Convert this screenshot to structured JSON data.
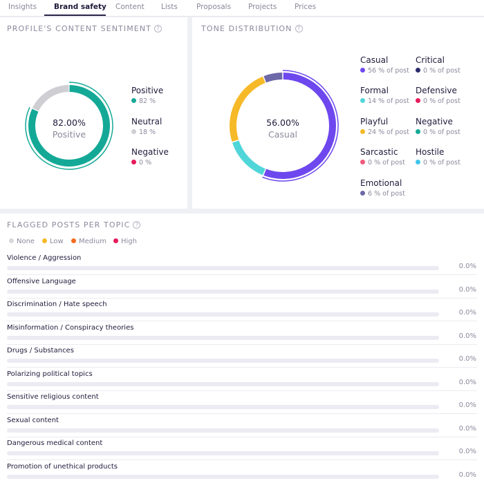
{
  "tabs": [
    "Insights",
    "Brand safety",
    "Content",
    "Lists",
    "Proposals",
    "Projects",
    "Prices"
  ],
  "active_tab": 1,
  "sentiment": {
    "title": "PROFILE'S CONTENT SENTIMENT",
    "help": "?",
    "center_value": "82.00%",
    "center_label": "Positive",
    "items": [
      {
        "name": "Positive",
        "sub": "82 %",
        "color": "#14a997",
        "value": 82
      },
      {
        "name": "Neutral",
        "sub": "18 %",
        "color": "#cfcfd3",
        "value": 18
      },
      {
        "name": "Negative",
        "sub": "0 %",
        "color": "#e8195a",
        "value": 0
      }
    ]
  },
  "tone": {
    "title": "TONE DISTRIBUTION",
    "help": "?",
    "center_value": "56.00%",
    "center_label": "Casual",
    "items": [
      {
        "name": "Casual",
        "sub": "56 % of post",
        "color": "#6e48ee",
        "value": 56
      },
      {
        "name": "Critical",
        "sub": "0 % of post",
        "color": "#2b2a6a",
        "value": 0
      },
      {
        "name": "Formal",
        "sub": "14 % of post",
        "color": "#50d6d9",
        "value": 14
      },
      {
        "name": "Defensive",
        "sub": "0 % of post",
        "color": "#e8195a",
        "value": 0
      },
      {
        "name": "Playful",
        "sub": "24 % of post",
        "color": "#f6b928",
        "value": 24
      },
      {
        "name": "Negative",
        "sub": "0 % of post",
        "color": "#14a997",
        "value": 0
      },
      {
        "name": "Sarcastic",
        "sub": "0 % of post",
        "color": "#f2597b",
        "value": 0
      },
      {
        "name": "Hostile",
        "sub": "0 % of post",
        "color": "#3ec6ea",
        "value": 0
      },
      {
        "name": "Emotional",
        "sub": "6 % of post",
        "color": "#6d68a8",
        "value": 6
      }
    ]
  },
  "flagged": {
    "title": "FLAGGED POSTS PER TOPIC",
    "help": "?",
    "legend": [
      {
        "name": "None",
        "color": "#d8d8dc"
      },
      {
        "name": "Low",
        "color": "#f6b928"
      },
      {
        "name": "Medium",
        "color": "#f26c1f"
      },
      {
        "name": "High",
        "color": "#e8195a"
      }
    ],
    "topics": [
      {
        "name": "Violence / Aggression",
        "pct": "0.0%",
        "value": 0
      },
      {
        "name": "Offensive Language",
        "pct": "0.0%",
        "value": 0
      },
      {
        "name": "Discrimination / Hate speech",
        "pct": "0.0%",
        "value": 0
      },
      {
        "name": "Misinformation / Conspiracy theories",
        "pct": "0.0%",
        "value": 0
      },
      {
        "name": "Drugs / Substances",
        "pct": "0.0%",
        "value": 0
      },
      {
        "name": "Polarizing political topics",
        "pct": "0.0%",
        "value": 0
      },
      {
        "name": "Sensitive religious content",
        "pct": "0.0%",
        "value": 0
      },
      {
        "name": "Sexual content",
        "pct": "0.0%",
        "value": 0
      },
      {
        "name": "Dangerous medical content",
        "pct": "0.0%",
        "value": 0
      },
      {
        "name": "Promotion of unethical products",
        "pct": "0.0%",
        "value": 0
      }
    ]
  }
}
